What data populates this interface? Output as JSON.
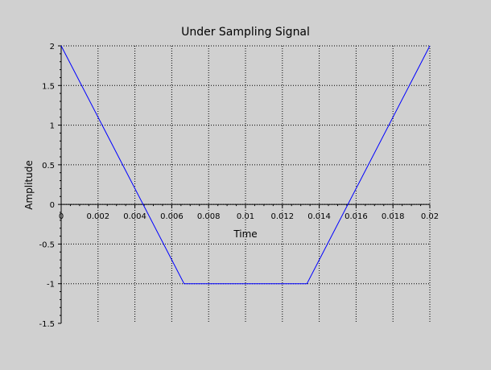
{
  "chart_data": {
    "type": "line",
    "title": "Under Sampling Signal",
    "xlabel": "Time",
    "ylabel": "Amplitude",
    "xlim": [
      0,
      0.02
    ],
    "ylim": [
      -1.5,
      2
    ],
    "xticks": [
      0,
      0.002,
      0.004,
      0.006,
      0.008,
      0.01,
      0.012,
      0.014,
      0.016,
      0.018,
      0.02
    ],
    "xtick_labels": [
      "0",
      "0.002",
      "0.004",
      "0.006",
      "0.008",
      "0.01",
      "0.012",
      "0.014",
      "0.016",
      "0.018",
      "0.02"
    ],
    "yticks": [
      -1.5,
      -1,
      -0.5,
      0,
      0.5,
      1,
      1.5,
      2
    ],
    "ytick_labels": [
      "-1.5",
      "-1",
      "-0.5",
      "0",
      "0.5",
      "1",
      "1.5",
      "2"
    ],
    "grid": true,
    "series": [
      {
        "color": "#0000ff",
        "x": [
          0,
          0.00667,
          0.01333,
          0.02
        ],
        "y": [
          2,
          -1,
          -1,
          2
        ]
      }
    ]
  },
  "colors": {
    "figure_background": "#d0d0d0",
    "grid": "#000000",
    "axes": "#000000"
  }
}
